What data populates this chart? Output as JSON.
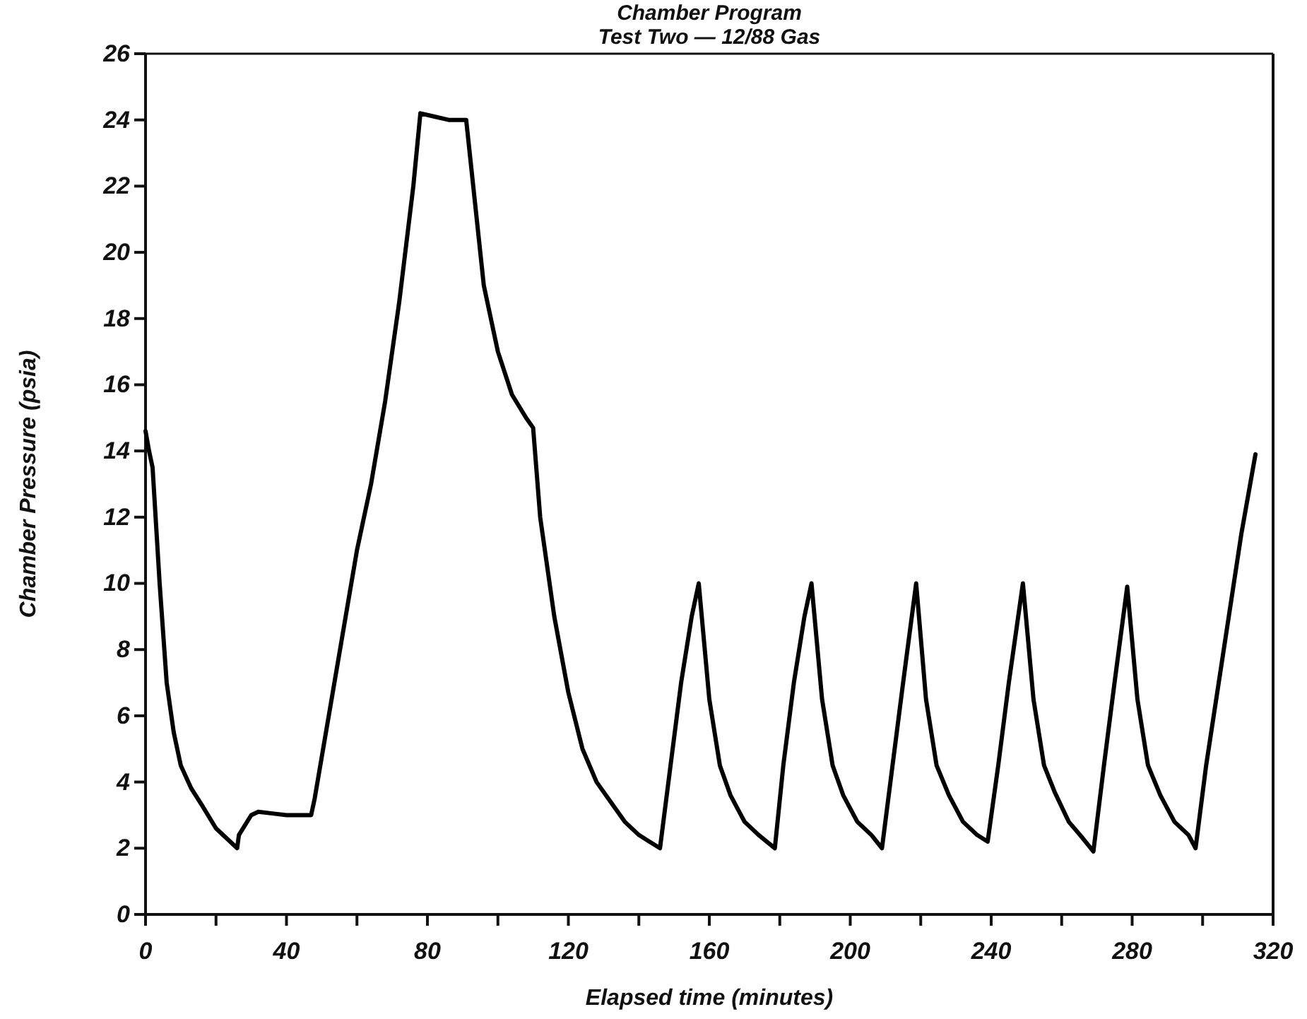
{
  "chart_data": {
    "type": "line",
    "title": "Chamber Program",
    "subtitle": "Test Two — 12/88 Gas",
    "xlabel": "Elapsed time (minutes)",
    "ylabel": "Chamber Pressure (psia)",
    "xlim": [
      0,
      320
    ],
    "ylim": [
      0,
      26
    ],
    "xticks": [
      0,
      {
        "value": 20,
        "label": null
      },
      40,
      {
        "value": 60,
        "label": null
      },
      80,
      {
        "value": 100,
        "label": null
      },
      120,
      {
        "value": 140,
        "label": null
      },
      160,
      {
        "value": 180,
        "label": null
      },
      200,
      {
        "value": 220,
        "label": null
      },
      240,
      {
        "value": 260,
        "label": null
      },
      280,
      {
        "value": 300,
        "label": null
      },
      320
    ],
    "yticks": [
      0,
      2,
      4,
      6,
      8,
      10,
      12,
      14,
      16,
      18,
      20,
      22,
      24,
      26
    ],
    "grid": false,
    "marker": "none",
    "line_style": "solid",
    "series": [
      {
        "color": "#000000",
        "x": [
          0,
          1,
          2,
          4,
          6,
          8,
          10,
          13,
          16,
          20,
          23,
          26,
          26.5,
          30,
          32,
          36,
          40,
          47,
          48,
          52,
          56,
          60,
          64,
          68,
          72,
          76,
          78,
          82,
          86,
          88,
          91,
          93,
          96,
          100,
          104,
          108,
          110,
          112,
          116,
          120,
          124,
          128,
          132,
          136,
          140,
          143,
          146,
          149,
          152,
          155,
          157,
          160,
          163,
          166,
          170,
          174,
          178.6,
          181,
          184,
          187,
          189,
          192,
          195,
          198,
          202,
          206,
          209,
          212,
          215,
          218.7,
          221.5,
          224.5,
          228,
          232,
          236,
          239,
          242,
          245,
          249,
          252,
          255,
          258,
          262,
          266,
          269,
          272,
          275,
          278.6,
          281.5,
          284.5,
          288,
          292,
          296,
          298,
          301,
          306,
          311,
          315
        ],
        "values": [
          14.6,
          14,
          13.5,
          10,
          7,
          5.5,
          4.5,
          3.8,
          3.3,
          2.6,
          2.3,
          2,
          2.4,
          3,
          3.1,
          3.05,
          3,
          3,
          3.5,
          6,
          8.5,
          11,
          13,
          15.5,
          18.5,
          22,
          24.2,
          24.1,
          24,
          24,
          24,
          22,
          19,
          17,
          15.7,
          15,
          14.7,
          12,
          9,
          6.7,
          5,
          4,
          3.4,
          2.8,
          2.4,
          2.2,
          2,
          4.5,
          7,
          9,
          10,
          6.5,
          4.5,
          3.6,
          2.8,
          2.4,
          2,
          4.5,
          7,
          9,
          10,
          6.5,
          4.5,
          3.6,
          2.8,
          2.4,
          2,
          4.5,
          7,
          10,
          6.5,
          4.5,
          3.6,
          2.8,
          2.4,
          2.2,
          4.5,
          7,
          10,
          6.5,
          4.5,
          3.7,
          2.8,
          2.3,
          1.9,
          4.5,
          7,
          9.9,
          6.5,
          4.5,
          3.6,
          2.8,
          2.4,
          2,
          4.5,
          8,
          11.5,
          13.9
        ]
      }
    ]
  }
}
